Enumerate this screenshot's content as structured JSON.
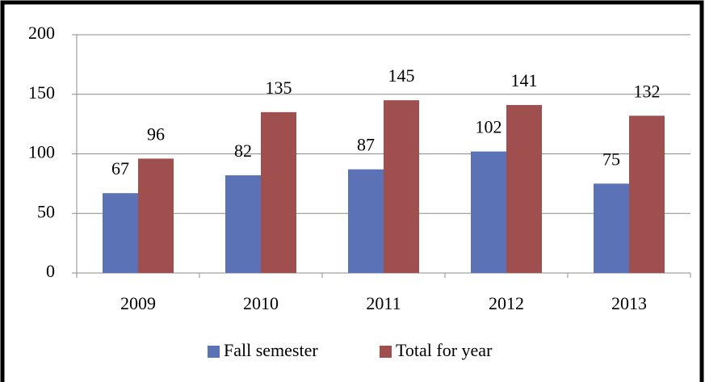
{
  "chart_data": {
    "type": "bar",
    "categories": [
      "2009",
      "2010",
      "2011",
      "2012",
      "2013"
    ],
    "series": [
      {
        "name": "Fall semester",
        "color": "#5b73b6",
        "values": [
          67,
          82,
          87,
          102,
          75
        ]
      },
      {
        "name": "Total for year",
        "color": "#a04f4f",
        "values": [
          96,
          135,
          145,
          141,
          132
        ]
      }
    ],
    "ylim": [
      0,
      200
    ],
    "yticks": [
      0,
      50,
      100,
      150,
      200
    ],
    "grid": true,
    "legend": "bottom"
  }
}
